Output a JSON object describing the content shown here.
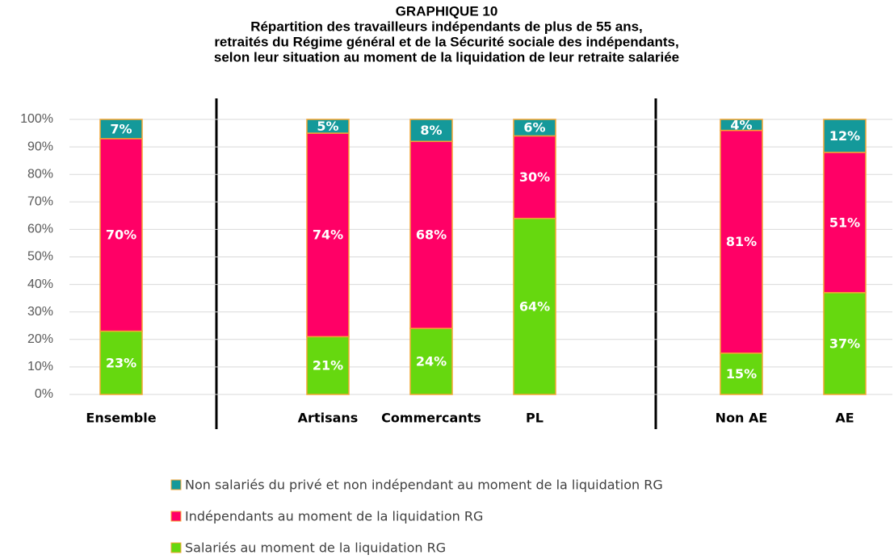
{
  "chart_data": {
    "type": "stacked_bar",
    "title": "GRAPHIQUE 10",
    "subtitle": [
      "Répartition des travailleurs indépendants de plus de 55 ans,",
      "retraités du Régime général et de la Sécurité sociale des indépendants,",
      "selon leur situation au moment de la liquidation de leur retraite salariée"
    ],
    "categories": [
      "Ensemble",
      null,
      "Artisans",
      "Commercants",
      "PL",
      null,
      "Non AE",
      "AE"
    ],
    "series": [
      {
        "name": "Non salariés du privé et non indépendant au moment de la liquidation RG",
        "color": "#14999a",
        "values": [
          7,
          null,
          5,
          8,
          6,
          null,
          4,
          12
        ],
        "value_labels": [
          "7%",
          null,
          "5%",
          "8%",
          "6%",
          null,
          "4%",
          "12%"
        ]
      },
      {
        "name": "Indépendants au moment de la liquidation RG",
        "color": "#ff0066",
        "values": [
          70,
          null,
          74,
          68,
          30,
          null,
          81,
          51
        ],
        "value_labels": [
          "70%",
          null,
          "74%",
          "68%",
          "30%",
          null,
          "81%",
          "51%"
        ]
      },
      {
        "name": "Salariés au moment de la liquidation RG",
        "color": "#66d80f",
        "values": [
          23,
          null,
          21,
          24,
          64,
          null,
          15,
          37
        ],
        "value_labels": [
          "23%",
          null,
          "21%",
          "24%",
          "64%",
          null,
          "15%",
          "37%"
        ]
      }
    ],
    "ylim": [
      0,
      100
    ],
    "yticks": [
      {
        "value": 0,
        "label": "0%"
      },
      {
        "value": 10,
        "label": "10%"
      },
      {
        "value": 20,
        "label": "20%"
      },
      {
        "value": 30,
        "label": "30%"
      },
      {
        "value": 40,
        "label": "40%"
      },
      {
        "value": 50,
        "label": "50%"
      },
      {
        "value": 60,
        "label": "60%"
      },
      {
        "value": 70,
        "label": "70%"
      },
      {
        "value": 80,
        "label": "80%"
      },
      {
        "value": 90,
        "label": "90%"
      },
      {
        "value": 100,
        "label": "100%"
      }
    ],
    "grid": true
  }
}
